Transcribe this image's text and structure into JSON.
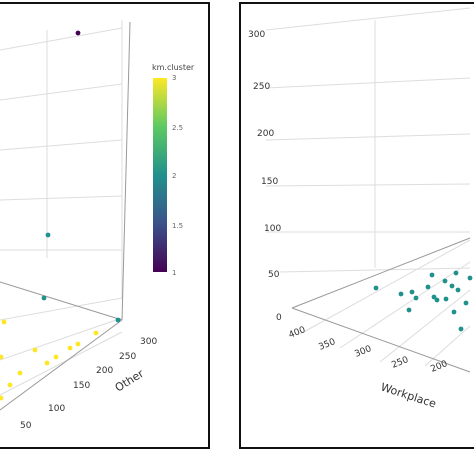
{
  "chart_data": [
    {
      "type": "scatter",
      "panel": "left",
      "z_ticks": [
        "300",
        "250",
        "200",
        "150",
        "100",
        "50"
      ],
      "ylabel": "Other",
      "legend": {
        "title": "km.cluster",
        "range": [
          1,
          3
        ],
        "ticks": [
          "3",
          "2.5",
          "2",
          "1.5",
          "1"
        ],
        "colors": [
          "#fde725",
          "#5ec962",
          "#21918c",
          "#3b528b",
          "#440154"
        ]
      },
      "cluster_colors": {
        "1": "#440154",
        "2": "#21918c",
        "3": "#fde725"
      },
      "points": [
        {
          "cluster": 1
        },
        {
          "cluster": 2
        },
        {
          "cluster": 2
        },
        {
          "cluster": 2
        },
        {
          "cluster": 3
        },
        {
          "cluster": 3
        },
        {
          "cluster": 3
        },
        {
          "cluster": 3
        },
        {
          "cluster": 3
        },
        {
          "cluster": 3
        },
        {
          "cluster": 3
        },
        {
          "cluster": 3
        },
        {
          "cluster": 3
        },
        {
          "cluster": 3
        },
        {
          "cluster": 3
        }
      ]
    },
    {
      "type": "scatter",
      "panel": "right",
      "z_ticks": [
        "300",
        "250",
        "200",
        "150",
        "100",
        "50",
        "0"
      ],
      "x_ticks": [
        "400",
        "350",
        "300",
        "250",
        "200"
      ],
      "xlabel": "Workplace",
      "cluster_colors": {
        "2": "#21918c"
      },
      "points": [
        {
          "cluster": 2
        },
        {
          "cluster": 2
        },
        {
          "cluster": 2
        },
        {
          "cluster": 2
        },
        {
          "cluster": 2
        },
        {
          "cluster": 2
        },
        {
          "cluster": 2
        },
        {
          "cluster": 2
        },
        {
          "cluster": 2
        },
        {
          "cluster": 2
        },
        {
          "cluster": 2
        },
        {
          "cluster": 2
        },
        {
          "cluster": 2
        },
        {
          "cluster": 2
        },
        {
          "cluster": 2
        },
        {
          "cluster": 2
        },
        {
          "cluster": 2
        },
        {
          "cluster": 2
        }
      ]
    }
  ]
}
